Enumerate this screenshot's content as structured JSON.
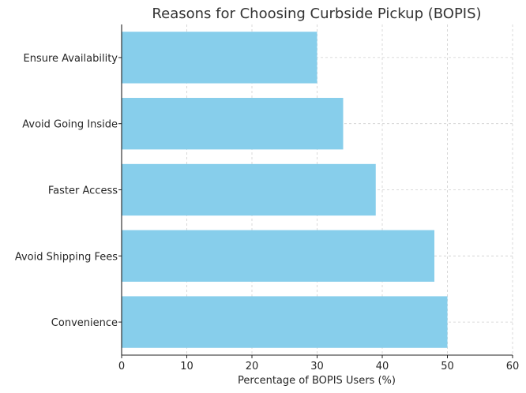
{
  "chart_data": {
    "type": "bar",
    "orientation": "horizontal",
    "title": "Reasons for Choosing Curbside Pickup (BOPIS)",
    "xlabel": "Percentage of BOPIS Users (%)",
    "ylabel": "",
    "categories": [
      "Convenience",
      "Avoid Shipping Fees",
      "Faster Access",
      "Avoid Going Inside",
      "Ensure Availability"
    ],
    "values": [
      50,
      48,
      39,
      34,
      30
    ],
    "xlim": [
      0,
      60
    ],
    "xticks": [
      "0",
      "10",
      "20",
      "30",
      "40",
      "50",
      "60"
    ],
    "grid": true,
    "bar_color": "#87ceeb"
  }
}
